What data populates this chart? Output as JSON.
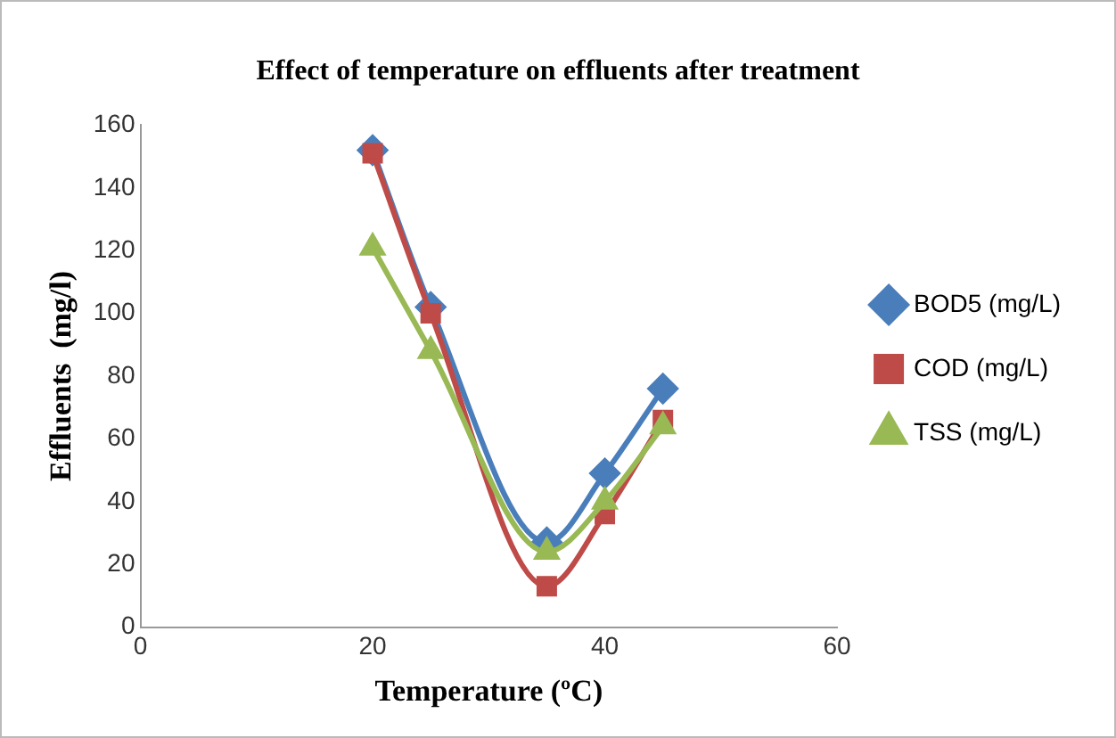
{
  "chart_data": {
    "type": "line",
    "title": "Effect of temperature on effluents after treatment",
    "xlabel": "Temperature (ºC)",
    "ylabel": "Effluents  (mg/l)",
    "x": [
      20,
      25,
      35,
      40,
      45
    ],
    "series": [
      {
        "name": "BOD5 (mg/L)",
        "color": "#4a7ebb",
        "marker": "diamond",
        "values": [
          152,
          102,
          27,
          49,
          76
        ]
      },
      {
        "name": "COD (mg/L)",
        "color": "#be4b48",
        "marker": "square",
        "values": [
          151,
          100,
          13,
          36,
          66
        ]
      },
      {
        "name": "TSS (mg/L)",
        "color": "#98b954",
        "marker": "triangle",
        "values": [
          121,
          88,
          24,
          40,
          64
        ]
      }
    ],
    "xlim": [
      0,
      60
    ],
    "xticks": [
      0,
      20,
      40,
      60
    ],
    "ylim": [
      0,
      160
    ],
    "yticks": [
      0,
      20,
      40,
      60,
      80,
      100,
      120,
      140,
      160
    ],
    "grid": false,
    "legend": "right",
    "line_style": "solid"
  }
}
